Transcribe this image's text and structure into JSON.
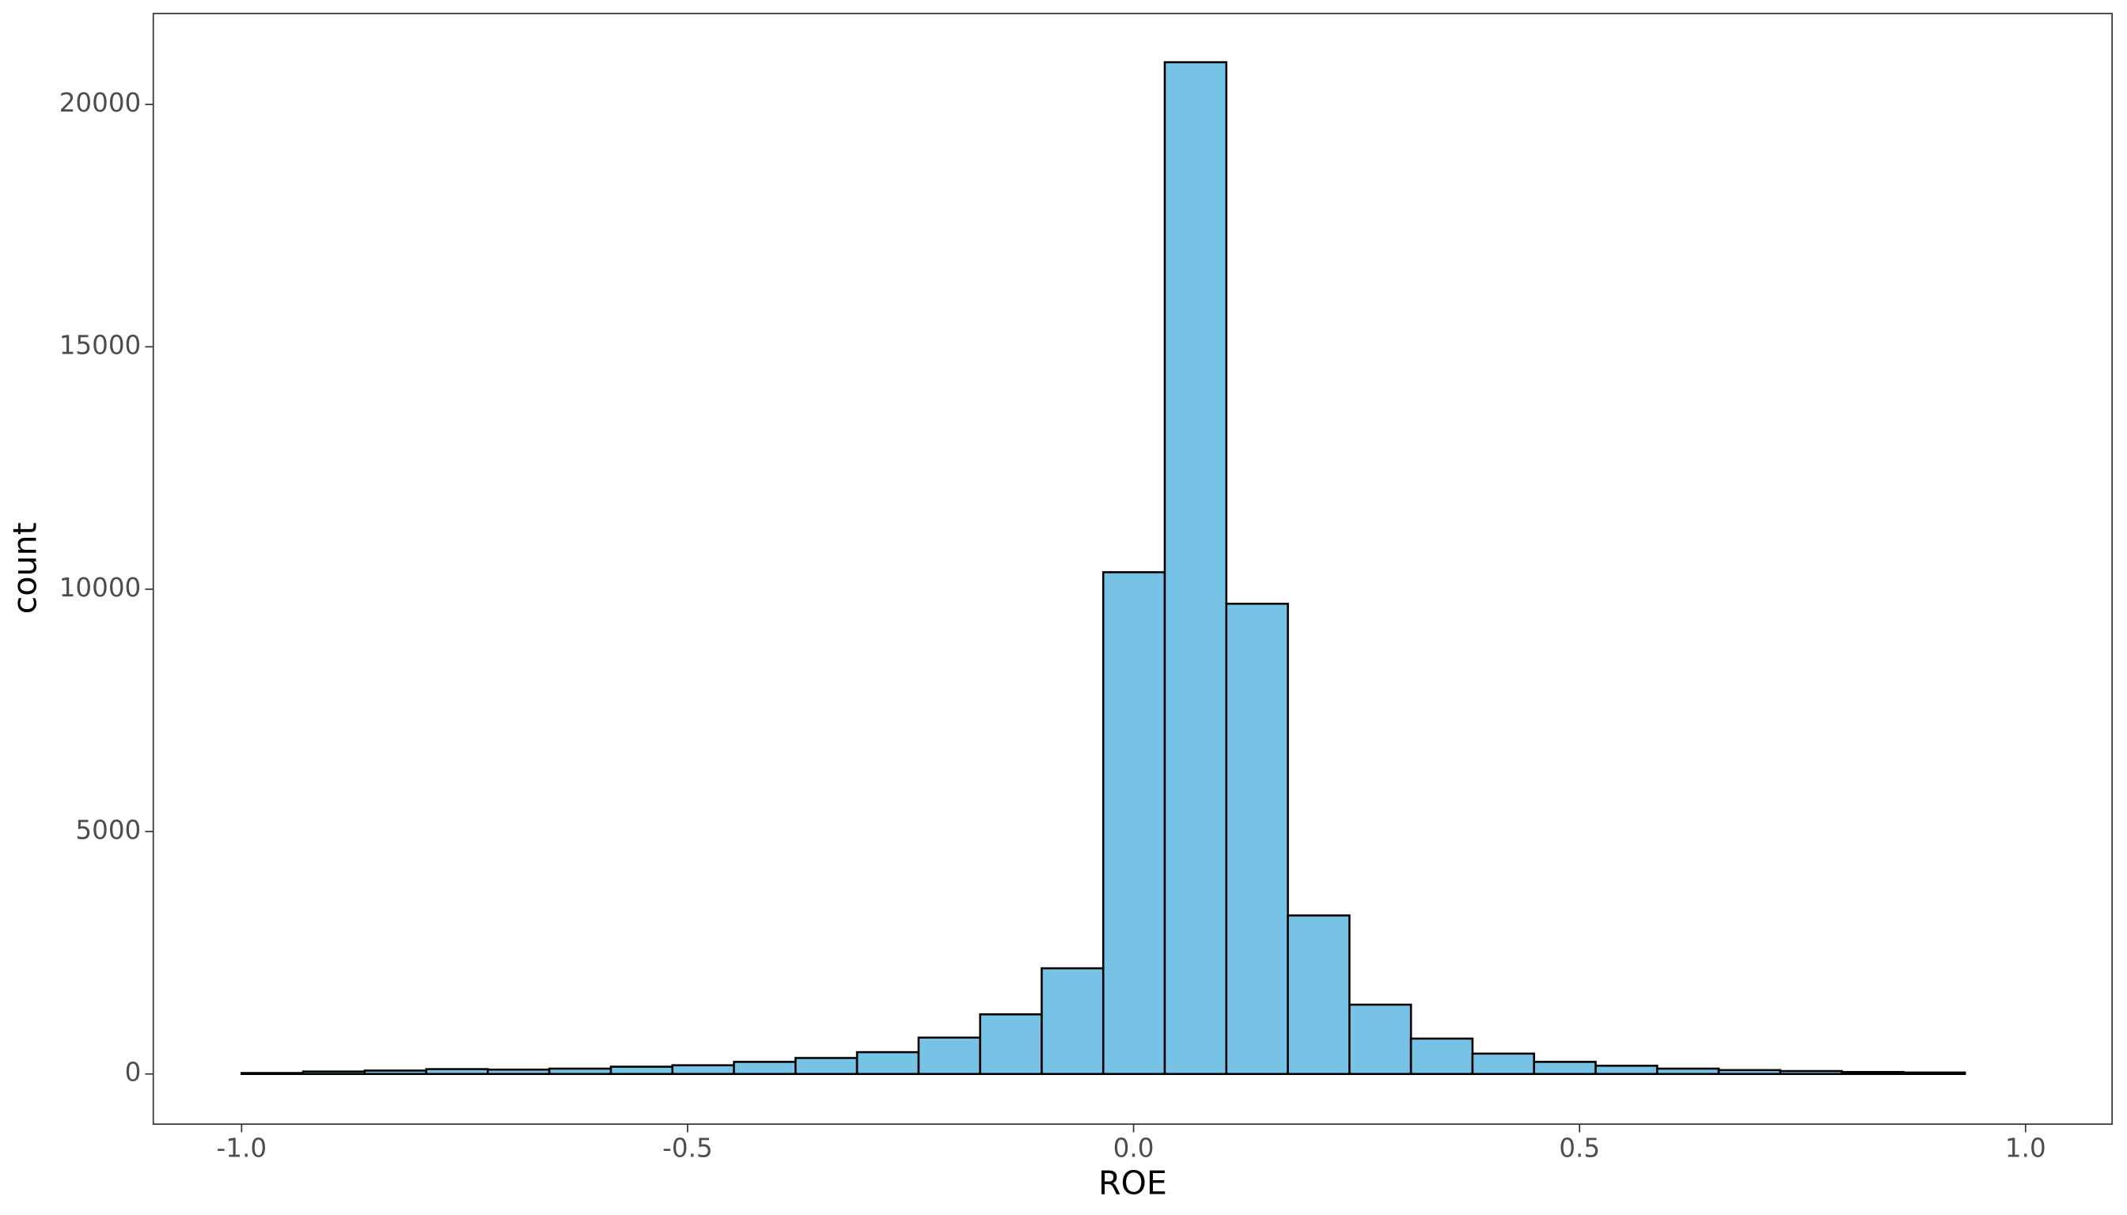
{
  "chart_data": {
    "type": "histogram",
    "x_label": "ROE",
    "y_label": "count",
    "bins": [
      -1.0,
      -0.931,
      -0.862,
      -0.793,
      -0.724,
      -0.655,
      -0.586,
      -0.517,
      -0.448,
      -0.379,
      -0.31,
      -0.241,
      -0.172,
      -0.103,
      -0.034,
      0.035,
      0.104,
      0.173,
      0.242,
      0.311,
      0.38,
      0.449,
      0.518,
      0.587,
      0.656,
      0.725,
      0.794,
      0.863,
      0.932
    ],
    "values": [
      20,
      50,
      70,
      100,
      90,
      110,
      150,
      180,
      250,
      330,
      450,
      750,
      1230,
      2180,
      10350,
      20870,
      9700,
      3270,
      1430,
      730,
      420,
      250,
      170,
      110,
      80,
      60,
      40,
      30
    ],
    "color": "#77c3e6",
    "edge_color": "#000000",
    "xlim": [
      -1.099,
      1.097
    ],
    "ylim": [
      -1035,
      21874
    ],
    "xticks": [
      {
        "value": -1,
        "label": "-1.0"
      },
      {
        "value": -0.5,
        "label": "-0.5"
      },
      {
        "value": 0,
        "label": "0.0"
      },
      0.5,
      {
        "value": 1,
        "label": "1.0"
      }
    ],
    "yticks": [
      0,
      5000,
      10000,
      15000,
      20000
    ],
    "grid": false
  }
}
